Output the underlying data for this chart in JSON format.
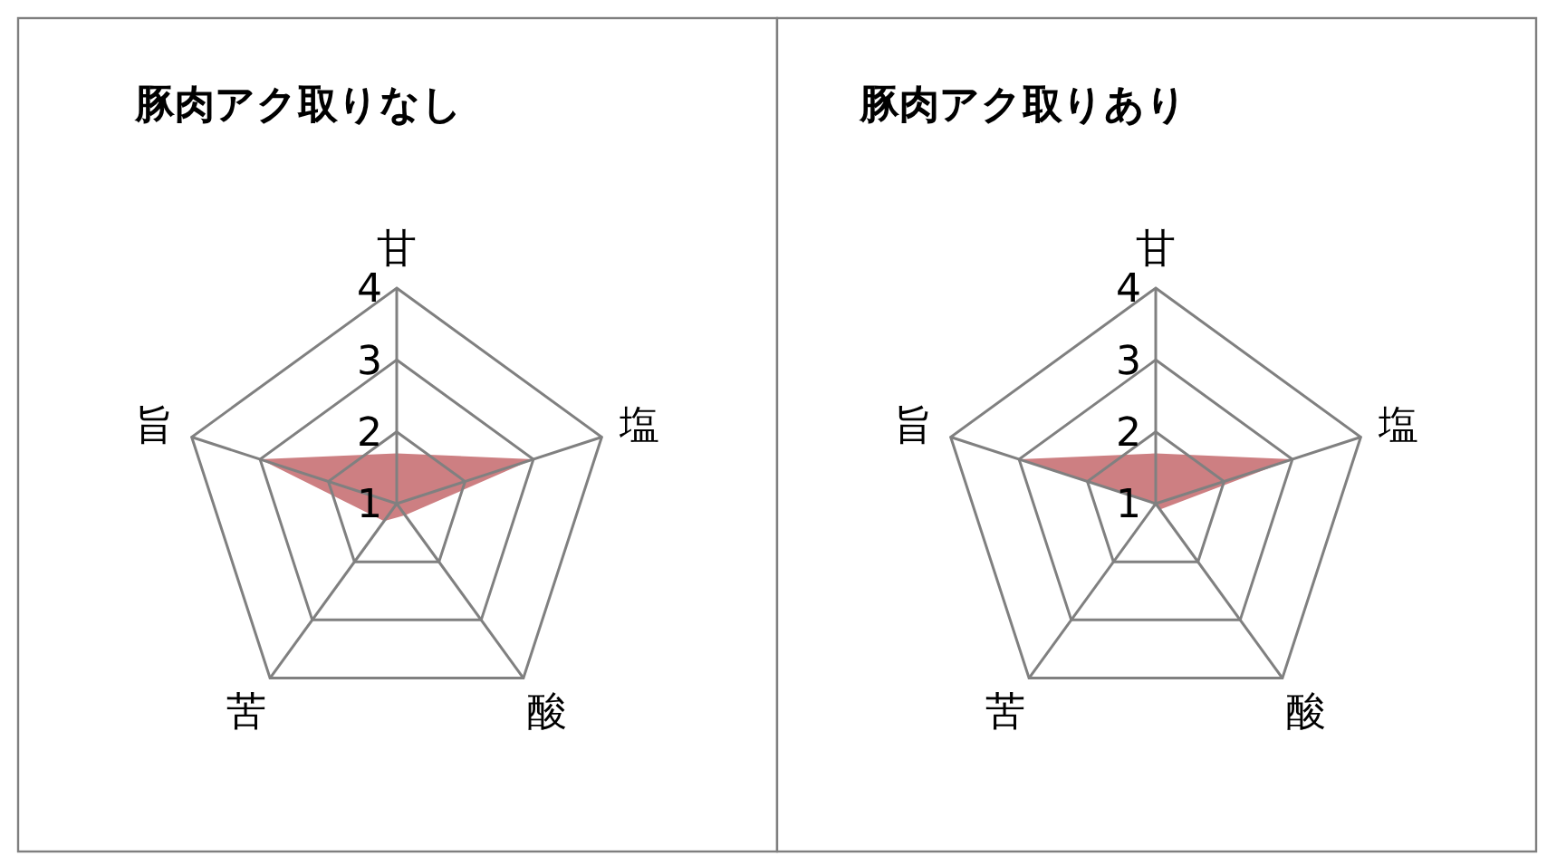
{
  "chart_data": [
    {
      "type": "radar",
      "title": "豚肉アク取りなし",
      "categories": [
        "甘",
        "塩",
        "酸",
        "苦",
        "旨"
      ],
      "series": [
        {
          "color": "#cd7f82",
          "values": [
            1.7,
            3,
            1.2,
            1.3,
            3
          ]
        }
      ],
      "ylim": [
        1,
        4
      ],
      "yticks": [
        1,
        2,
        3,
        4
      ],
      "grid": true
    },
    {
      "type": "radar",
      "title": "豚肉アク取りあり",
      "categories": [
        "甘",
        "塩",
        "酸",
        "苦",
        "旨"
      ],
      "series": [
        {
          "color": "#cd7f82",
          "values": [
            1.7,
            3,
            1.1,
            1.0,
            3
          ]
        }
      ],
      "ylim": [
        1,
        4
      ],
      "yticks": [
        1,
        2,
        3,
        4
      ],
      "grid": true
    }
  ]
}
